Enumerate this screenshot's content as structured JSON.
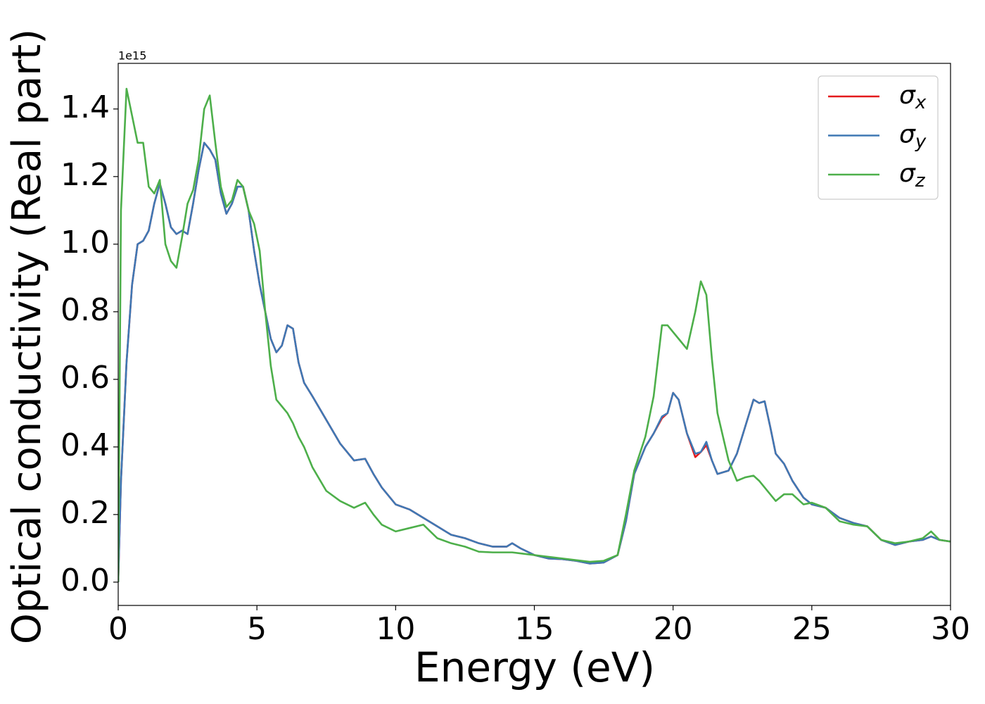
{
  "chart_data": {
    "type": "line",
    "xlabel": "Energy (eV)",
    "ylabel": "Optical conductivity (Real part)",
    "y_offset_label": "1e15",
    "x": [
      0,
      0.1,
      0.3,
      0.5,
      0.7,
      0.9,
      1.1,
      1.3,
      1.5,
      1.7,
      1.9,
      2.1,
      2.3,
      2.5,
      2.7,
      2.9,
      3.1,
      3.3,
      3.5,
      3.7,
      3.9,
      4.1,
      4.3,
      4.5,
      4.7,
      4.9,
      5.1,
      5.3,
      5.5,
      5.7,
      5.9,
      6.1,
      6.3,
      6.5,
      6.7,
      7.0,
      7.5,
      8.0,
      8.5,
      8.9,
      9.2,
      9.5,
      10,
      10.5,
      11,
      11.5,
      12,
      12.5,
      13,
      13.5,
      14,
      14.2,
      14.5,
      15,
      15.5,
      16,
      16.5,
      17,
      17.5,
      18,
      18.3,
      18.6,
      19,
      19.3,
      19.6,
      19.8,
      20.0,
      20.2,
      20.5,
      20.8,
      21.0,
      21.2,
      21.4,
      21.6,
      22.0,
      22.3,
      22.6,
      22.9,
      23.1,
      23.3,
      23.5,
      23.7,
      24.0,
      24.3,
      24.7,
      25,
      25.5,
      26,
      26.5,
      27,
      27.5,
      28,
      28.5,
      29,
      29.3,
      29.6,
      30
    ],
    "series": [
      {
        "name": "σx",
        "color": "#e41a1c",
        "values": [
          0.0,
          0.3,
          0.65,
          0.88,
          1.0,
          1.01,
          1.04,
          1.12,
          1.18,
          1.12,
          1.05,
          1.03,
          1.04,
          1.03,
          1.12,
          1.22,
          1.3,
          1.28,
          1.25,
          1.15,
          1.09,
          1.12,
          1.17,
          1.17,
          1.1,
          0.98,
          0.88,
          0.8,
          0.72,
          0.68,
          0.7,
          0.76,
          0.75,
          0.65,
          0.59,
          0.55,
          0.48,
          0.41,
          0.36,
          0.365,
          0.32,
          0.28,
          0.23,
          0.215,
          0.19,
          0.165,
          0.14,
          0.13,
          0.115,
          0.105,
          0.105,
          0.115,
          0.1,
          0.08,
          0.07,
          0.068,
          0.063,
          0.055,
          0.058,
          0.08,
          0.18,
          0.32,
          0.4,
          0.44,
          0.485,
          0.5,
          0.56,
          0.54,
          0.44,
          0.37,
          0.385,
          0.405,
          0.36,
          0.32,
          0.33,
          0.38,
          0.46,
          0.54,
          0.53,
          0.535,
          0.46,
          0.38,
          0.35,
          0.3,
          0.25,
          0.23,
          0.22,
          0.19,
          0.175,
          0.165,
          0.125,
          0.11,
          0.12,
          0.125,
          0.135,
          0.125,
          0.12
        ]
      },
      {
        "name": "σy",
        "color": "#3f78b4",
        "values": [
          0.0,
          0.3,
          0.65,
          0.88,
          1.0,
          1.01,
          1.04,
          1.12,
          1.18,
          1.12,
          1.05,
          1.03,
          1.04,
          1.03,
          1.12,
          1.22,
          1.3,
          1.28,
          1.25,
          1.15,
          1.09,
          1.12,
          1.17,
          1.17,
          1.1,
          0.98,
          0.88,
          0.8,
          0.72,
          0.68,
          0.7,
          0.76,
          0.75,
          0.65,
          0.59,
          0.55,
          0.48,
          0.41,
          0.36,
          0.365,
          0.32,
          0.28,
          0.23,
          0.215,
          0.19,
          0.165,
          0.14,
          0.13,
          0.115,
          0.105,
          0.105,
          0.115,
          0.1,
          0.08,
          0.07,
          0.068,
          0.063,
          0.055,
          0.058,
          0.08,
          0.18,
          0.32,
          0.4,
          0.44,
          0.49,
          0.5,
          0.56,
          0.54,
          0.44,
          0.38,
          0.385,
          0.415,
          0.36,
          0.32,
          0.33,
          0.38,
          0.46,
          0.54,
          0.53,
          0.535,
          0.46,
          0.38,
          0.35,
          0.3,
          0.25,
          0.23,
          0.22,
          0.19,
          0.175,
          0.165,
          0.125,
          0.11,
          0.12,
          0.125,
          0.135,
          0.125,
          0.12
        ]
      },
      {
        "name": "σz",
        "color": "#4daf4a",
        "values": [
          0.0,
          1.1,
          1.46,
          1.38,
          1.3,
          1.3,
          1.17,
          1.15,
          1.19,
          1.0,
          0.95,
          0.93,
          1.02,
          1.12,
          1.16,
          1.25,
          1.4,
          1.44,
          1.3,
          1.17,
          1.11,
          1.13,
          1.19,
          1.17,
          1.1,
          1.06,
          0.98,
          0.8,
          0.64,
          0.54,
          0.52,
          0.5,
          0.47,
          0.43,
          0.4,
          0.34,
          0.27,
          0.24,
          0.22,
          0.235,
          0.2,
          0.17,
          0.15,
          0.16,
          0.17,
          0.13,
          0.115,
          0.105,
          0.09,
          0.088,
          0.088,
          0.088,
          0.085,
          0.08,
          0.075,
          0.07,
          0.065,
          0.06,
          0.063,
          0.08,
          0.2,
          0.33,
          0.43,
          0.55,
          0.76,
          0.76,
          0.74,
          0.72,
          0.69,
          0.8,
          0.89,
          0.85,
          0.66,
          0.5,
          0.36,
          0.3,
          0.31,
          0.315,
          0.3,
          0.28,
          0.26,
          0.24,
          0.26,
          0.26,
          0.23,
          0.235,
          0.22,
          0.18,
          0.17,
          0.165,
          0.125,
          0.115,
          0.12,
          0.13,
          0.15,
          0.125,
          0.12
        ]
      }
    ],
    "xlim": [
      0,
      30
    ],
    "xticks": [
      0,
      5,
      10,
      15,
      20,
      25,
      30
    ],
    "ylim": [
      -0.069,
      1.535
    ],
    "yticks": [
      {
        "value": 0,
        "label": "0.0"
      },
      0.2,
      0.4,
      0.6,
      0.8,
      {
        "value": 1,
        "label": "1.0"
      },
      1.2,
      1.4
    ],
    "grid": false,
    "legend": "upper right"
  }
}
